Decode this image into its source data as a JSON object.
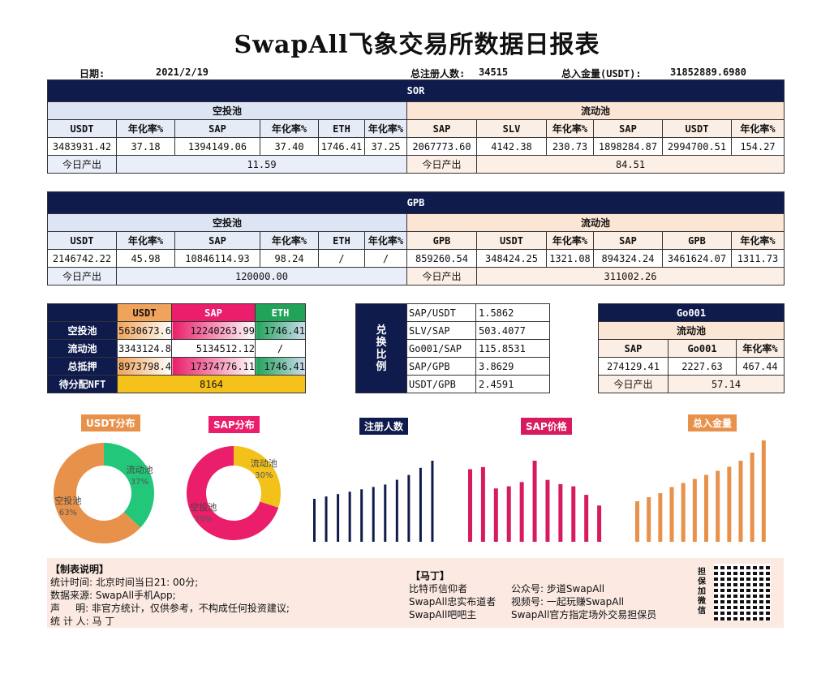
{
  "title": "SwapAll飞象交易所数据日报表",
  "meta": {
    "date_label": "日期:",
    "date": "2021/2/19",
    "users_label": "总注册人数:",
    "users": "34515",
    "deposit_label": "总入金量(USDT):",
    "deposit": "31852889.6980"
  },
  "sor": {
    "name": "SOR",
    "airdrop_label": "空投池",
    "liquidity_label": "流动池",
    "airdrop_cols": [
      "USDT",
      "年化率%",
      "SAP",
      "年化率%",
      "ETH",
      "年化率%"
    ],
    "airdrop_vals": [
      "3483931.42",
      "37.18",
      "1394149.06",
      "37.40",
      "1746.41",
      "37.25"
    ],
    "liquidity_cols": [
      "SAP",
      "SLV",
      "年化率%",
      "SAP",
      "USDT",
      "年化率%"
    ],
    "liquidity_vals": [
      "2067773.60",
      "4142.38",
      "230.73",
      "1898284.87",
      "2994700.51",
      "154.27"
    ],
    "output_label": "今日产出",
    "airdrop_output": "11.59",
    "liquidity_output": "84.51"
  },
  "gpb": {
    "name": "GPB",
    "airdrop_label": "空投池",
    "liquidity_label": "流动池",
    "airdrop_cols": [
      "USDT",
      "年化率%",
      "SAP",
      "年化率%",
      "ETH",
      "年化率%"
    ],
    "airdrop_vals": [
      "2146742.22",
      "45.98",
      "10846114.93",
      "98.24",
      "/",
      "/"
    ],
    "liquidity_cols": [
      "GPB",
      "USDT",
      "年化率%",
      "SAP",
      "GPB",
      "年化率%"
    ],
    "liquidity_vals": [
      "859260.54",
      "348424.25",
      "1321.08",
      "894324.24",
      "3461624.07",
      "1311.73"
    ],
    "output_label": "今日产出",
    "airdrop_output": "120000.00",
    "liquidity_output": "311002.26"
  },
  "summary": {
    "cols": [
      "USDT",
      "SAP",
      "ETH"
    ],
    "rows": [
      {
        "label": "空投池",
        "usdt": "5630673.6",
        "sap": "12240263.99",
        "eth": "1746.41"
      },
      {
        "label": "流动池",
        "usdt": "3343124.8",
        "sap": "5134512.12",
        "eth": "/"
      },
      {
        "label": "总抵押",
        "usdt": "8973798.4",
        "sap": "17374776.11",
        "eth": "1746.41"
      }
    ],
    "nft_label": "待分配NFT",
    "nft_value": "8164"
  },
  "exchange": {
    "label": "兑换比例",
    "rows": [
      {
        "pair": "SAP/USDT",
        "rate": "1.5862"
      },
      {
        "pair": "SLV/SAP",
        "rate": "503.4077"
      },
      {
        "pair": "Go001/SAP",
        "rate": "115.8531"
      },
      {
        "pair": "SAP/GPB",
        "rate": "3.8629"
      },
      {
        "pair": "USDT/GPB",
        "rate": "2.4591"
      }
    ]
  },
  "go001": {
    "name": "Go001",
    "pool_label": "流动池",
    "cols": [
      "SAP",
      "Go001",
      "年化率%"
    ],
    "vals": [
      "274129.41",
      "2227.63",
      "467.44"
    ],
    "output_label": "今日产出",
    "output": "57.14"
  },
  "charts_titles": {
    "usdt": "USDT分布",
    "sap": "SAP分布",
    "users": "注册人数",
    "price": "SAP价格",
    "deposit": "总入金量"
  },
  "chart_data": [
    {
      "type": "pie",
      "title": "USDT分布",
      "labels": [
        "流动池",
        "空投池"
      ],
      "values": [
        37,
        63
      ],
      "percent_labels": [
        "37%",
        "63%"
      ],
      "colors": [
        "#22c77a",
        "#e8914a"
      ]
    },
    {
      "type": "pie",
      "title": "SAP分布",
      "labels": [
        "流动池",
        "空投池"
      ],
      "values": [
        30,
        70
      ],
      "percent_labels": [
        "30%",
        "70%"
      ],
      "colors": [
        "#f2c21b",
        "#ea1e6a"
      ]
    },
    {
      "type": "bar",
      "title": "注册人数",
      "values": [
        18,
        19,
        20,
        21,
        22,
        23,
        24,
        26,
        28,
        31,
        34
      ],
      "color": "#0f1b4c"
    },
    {
      "type": "bar",
      "title": "SAP价格",
      "values": [
        34,
        35,
        25,
        26,
        28,
        38,
        29,
        27,
        26,
        22,
        17
      ],
      "color": "#d81b60"
    },
    {
      "type": "bar",
      "title": "总入金量",
      "values": [
        20,
        22,
        24,
        27,
        29,
        31,
        33,
        35,
        37,
        40,
        44,
        50
      ],
      "color": "#e8914a"
    }
  ],
  "footer": {
    "heading": "【制表说明】",
    "lines": [
      "统计时间: 北京时间当日21: 00分;",
      "数据来源: SwapAll手机App;",
      "声     明: 非官方统计，仅供参考，不构成任何投资建议;",
      "统 计 人: 马 丁"
    ],
    "author_heading": "【马丁】",
    "author_lines": [
      "比特币信仰者",
      "SwapAll忠实布道者",
      "SwapAll吧吧主"
    ],
    "contact_lines": [
      "公众号: 步道SwapAll",
      "视频号: 一起玩赚SwapAll",
      "SwapAll官方指定场外交易担保员"
    ],
    "qr_label": "担保加微信"
  }
}
